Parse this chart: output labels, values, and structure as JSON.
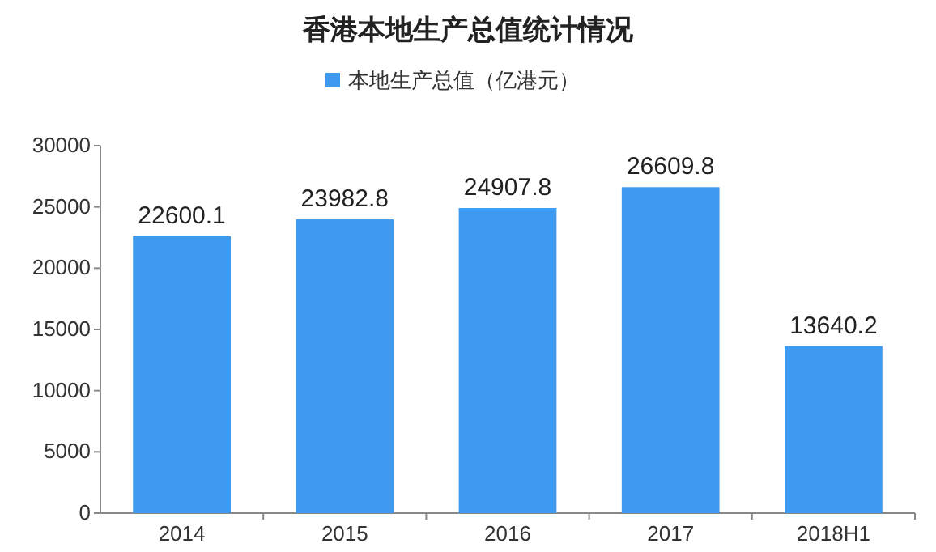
{
  "chart_data": {
    "type": "bar",
    "title": "香港本地生产总值统计情况",
    "categories": [
      "2014",
      "2015",
      "2016",
      "2017",
      "2018H1"
    ],
    "series": [
      {
        "name": "本地生产总值（亿港元）",
        "color": "#3d9aee",
        "values": [
          22600.1,
          23982.8,
          24907.8,
          26609.8,
          13640.2
        ]
      }
    ],
    "ylim": [
      0,
      30000
    ],
    "yticks": [
      0,
      5000,
      10000,
      15000,
      20000,
      25000,
      30000
    ],
    "grid": false,
    "legend": "top",
    "data_labels": true
  }
}
